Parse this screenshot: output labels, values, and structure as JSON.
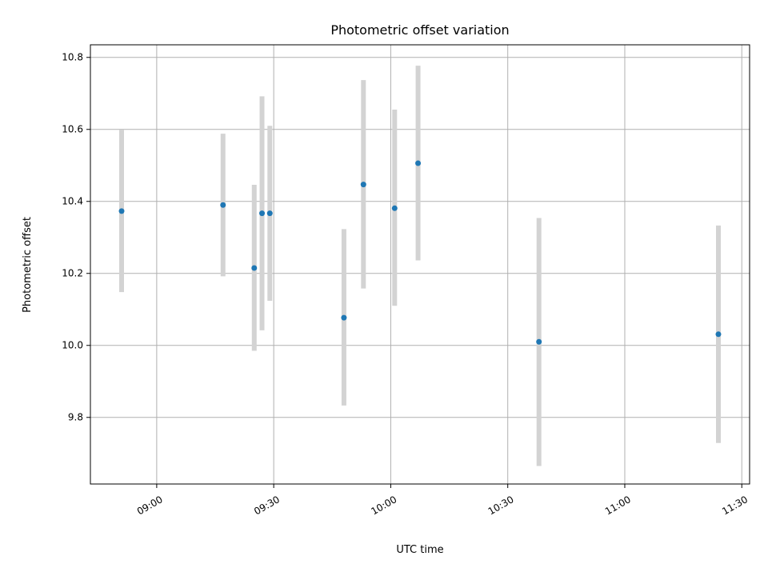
{
  "chart_data": {
    "type": "scatter",
    "title": "Photometric offset variation",
    "xlabel": "UTC time",
    "ylabel": "Photometric offset",
    "x_unit": "time",
    "xlim": [
      "08:43",
      "11:32"
    ],
    "ylim": [
      9.615,
      10.835
    ],
    "x_ticks": [
      "09:00",
      "09:30",
      "10:00",
      "10:30",
      "11:00",
      "11:30"
    ],
    "y_ticks": [
      9.8,
      10.0,
      10.2,
      10.4,
      10.6,
      10.8
    ],
    "y_tick_labels": [
      "9.8",
      "10.0",
      "10.2",
      "10.4",
      "10.6",
      "10.8"
    ],
    "grid": true,
    "colors": {
      "points": "#1f77b4",
      "error_bars": "#d3d3d3",
      "grid": "#b0b0b0",
      "axes": "#000000"
    },
    "series": [
      {
        "points": [
          {
            "x": "08:51",
            "y": 10.373,
            "y_low": 10.148,
            "y_high": 10.599
          },
          {
            "x": "09:17",
            "y": 10.39,
            "y_low": 10.192,
            "y_high": 10.588
          },
          {
            "x": "09:25",
            "y": 10.215,
            "y_low": 9.985,
            "y_high": 10.446
          },
          {
            "x": "09:27",
            "y": 10.367,
            "y_low": 10.042,
            "y_high": 10.692
          },
          {
            "x": "09:29",
            "y": 10.367,
            "y_low": 10.124,
            "y_high": 10.61
          },
          {
            "x": "09:48",
            "y": 10.077,
            "y_low": 9.833,
            "y_high": 10.323
          },
          {
            "x": "09:53",
            "y": 10.447,
            "y_low": 10.158,
            "y_high": 10.737
          },
          {
            "x": "10:01",
            "y": 10.381,
            "y_low": 10.11,
            "y_high": 10.655
          },
          {
            "x": "10:07",
            "y": 10.506,
            "y_low": 10.236,
            "y_high": 10.777
          },
          {
            "x": "10:38",
            "y": 10.01,
            "y_low": 9.665,
            "y_high": 10.354
          },
          {
            "x": "11:24",
            "y": 10.031,
            "y_low": 9.729,
            "y_high": 10.333
          }
        ]
      }
    ]
  }
}
